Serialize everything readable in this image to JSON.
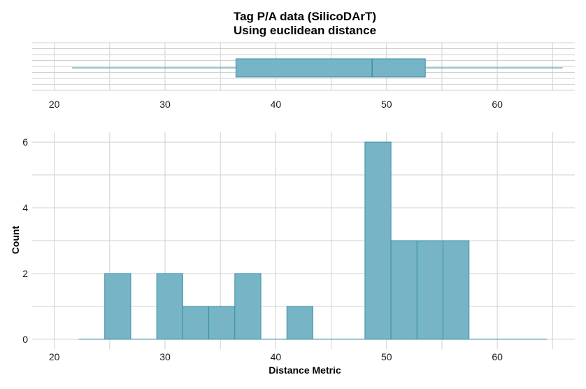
{
  "chart_data": [
    {
      "type": "boxplot",
      "title": "Tag P/A data (SilicoDArT)",
      "subtitle": "Using euclidean distance",
      "xlim": [
        18,
        67
      ],
      "x_ticks": [
        "20",
        "30",
        "40",
        "50",
        "60"
      ],
      "whisker_low": 21.6,
      "q1": 36.4,
      "median": 48.7,
      "q3": 53.5,
      "whisker_high": 65.9,
      "color": "#77b5c6",
      "edge_color": "#3a8ea5"
    },
    {
      "type": "bar",
      "xlabel": "Distance Metric",
      "ylabel": "Count",
      "xlim": [
        18,
        67
      ],
      "ylim": [
        -0.3,
        6.3
      ],
      "x_ticks": [
        "20",
        "30",
        "40",
        "50",
        "60"
      ],
      "y_ticks": [
        "0",
        "2",
        "4",
        "6"
      ],
      "bin_edges": [
        22.2,
        24.55,
        26.9,
        29.25,
        31.6,
        33.95,
        36.3,
        38.65,
        41.0,
        43.35,
        45.7,
        48.05,
        50.4,
        52.75,
        55.1,
        57.45,
        59.8,
        62.15,
        64.5
      ],
      "counts": [
        0,
        2,
        0,
        2,
        1,
        1,
        2,
        0,
        1,
        0,
        0,
        6,
        3,
        3,
        3,
        0,
        0,
        0
      ],
      "color": "#77b5c6",
      "edge_color": "#3a8ea5"
    }
  ]
}
